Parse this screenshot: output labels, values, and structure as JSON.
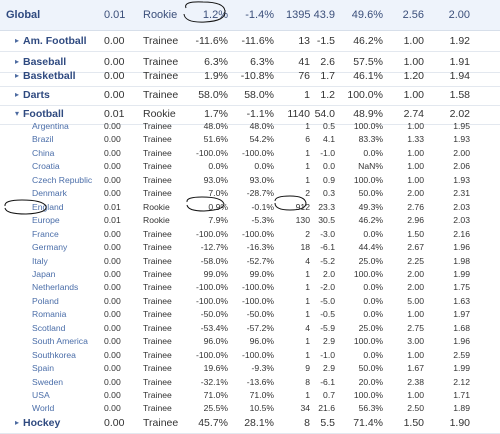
{
  "global": {
    "name": "Global",
    "values": [
      "0.01",
      "Rookie",
      "1.2%",
      "-1.4%",
      "1395",
      "43.9",
      "49.6%",
      "2.56",
      "2.00"
    ]
  },
  "sports_before": [
    {
      "name": "Am. Football",
      "toggle": "▸",
      "values": [
        "0.00",
        "Trainee",
        "-11.6%",
        "-11.6%",
        "13",
        "-1.5",
        "46.2%",
        "1.00",
        "1.92"
      ]
    },
    {
      "name": "Baseball",
      "toggle": "▸",
      "values": [
        "0.00",
        "Trainee",
        "6.3%",
        "6.3%",
        "41",
        "2.6",
        "57.5%",
        "1.00",
        "1.91"
      ]
    },
    {
      "name": "Basketball",
      "toggle": "▸",
      "values": [
        "0.00",
        "Trainee",
        "1.9%",
        "-10.8%",
        "76",
        "1.7",
        "46.1%",
        "1.20",
        "1.94"
      ]
    },
    {
      "name": "Darts",
      "toggle": "▸",
      "values": [
        "0.00",
        "Trainee",
        "58.0%",
        "58.0%",
        "1",
        "1.2",
        "100.0%",
        "1.00",
        "1.58"
      ]
    }
  ],
  "football": {
    "name": "Football",
    "toggle": "▾",
    "values": [
      "0.01",
      "Rookie",
      "1.7%",
      "-1.1%",
      "1140",
      "54.0",
      "48.9%",
      "2.74",
      "2.02"
    ],
    "countries": [
      {
        "name": "Argentina",
        "values": [
          "0.00",
          "Trainee",
          "48.0%",
          "48.0%",
          "1",
          "0.5",
          "100.0%",
          "1.00",
          "1.95"
        ]
      },
      {
        "name": "Brazil",
        "values": [
          "0.00",
          "Trainee",
          "51.6%",
          "54.2%",
          "6",
          "4.1",
          "83.3%",
          "1.33",
          "1.93"
        ]
      },
      {
        "name": "China",
        "values": [
          "0.00",
          "Trainee",
          "-100.0%",
          "-100.0%",
          "1",
          "-1.0",
          "0.0%",
          "1.00",
          "2.00"
        ]
      },
      {
        "name": "Croatia",
        "values": [
          "0.00",
          "Trainee",
          "0.0%",
          "0.0%",
          "1",
          "0.0",
          "NaN%",
          "1.00",
          "2.06"
        ]
      },
      {
        "name": "Czech Republic",
        "values": [
          "0.00",
          "Trainee",
          "93.0%",
          "93.0%",
          "1",
          "0.9",
          "100.0%",
          "1.00",
          "1.93"
        ]
      },
      {
        "name": "Denmark",
        "values": [
          "0.00",
          "Trainee",
          "7.0%",
          "-28.7%",
          "2",
          "0.3",
          "50.0%",
          "2.00",
          "2.31"
        ]
      },
      {
        "name": "England",
        "values": [
          "0.01",
          "Rookie",
          "0.9%",
          "-0.1%",
          "912",
          "23.3",
          "49.3%",
          "2.76",
          "2.03"
        ]
      },
      {
        "name": "Europe",
        "values": [
          "0.01",
          "Rookie",
          "7.9%",
          "-5.3%",
          "130",
          "30.5",
          "46.2%",
          "2.96",
          "2.03"
        ]
      },
      {
        "name": "France",
        "values": [
          "0.00",
          "Trainee",
          "-100.0%",
          "-100.0%",
          "2",
          "-3.0",
          "0.0%",
          "1.50",
          "2.16"
        ]
      },
      {
        "name": "Germany",
        "values": [
          "0.00",
          "Trainee",
          "-12.7%",
          "-16.3%",
          "18",
          "-6.1",
          "44.4%",
          "2.67",
          "1.96"
        ]
      },
      {
        "name": "Italy",
        "values": [
          "0.00",
          "Trainee",
          "-58.0%",
          "-52.7%",
          "4",
          "-5.2",
          "25.0%",
          "2.25",
          "1.98"
        ]
      },
      {
        "name": "Japan",
        "values": [
          "0.00",
          "Trainee",
          "99.0%",
          "99.0%",
          "1",
          "2.0",
          "100.0%",
          "2.00",
          "1.99"
        ]
      },
      {
        "name": "Netherlands",
        "values": [
          "0.00",
          "Trainee",
          "-100.0%",
          "-100.0%",
          "1",
          "-2.0",
          "0.0%",
          "2.00",
          "1.75"
        ]
      },
      {
        "name": "Poland",
        "values": [
          "0.00",
          "Trainee",
          "-100.0%",
          "-100.0%",
          "1",
          "-5.0",
          "0.0%",
          "5.00",
          "1.63"
        ]
      },
      {
        "name": "Romania",
        "values": [
          "0.00",
          "Trainee",
          "-50.0%",
          "-50.0%",
          "1",
          "-0.5",
          "0.0%",
          "1.00",
          "1.97"
        ]
      },
      {
        "name": "Scotland",
        "values": [
          "0.00",
          "Trainee",
          "-53.4%",
          "-57.2%",
          "4",
          "-5.9",
          "25.0%",
          "2.75",
          "1.68"
        ]
      },
      {
        "name": "South America",
        "values": [
          "0.00",
          "Trainee",
          "96.0%",
          "96.0%",
          "1",
          "2.9",
          "100.0%",
          "3.00",
          "1.96"
        ]
      },
      {
        "name": "Southkorea",
        "values": [
          "0.00",
          "Trainee",
          "-100.0%",
          "-100.0%",
          "1",
          "-1.0",
          "0.0%",
          "1.00",
          "2.59"
        ]
      },
      {
        "name": "Spain",
        "values": [
          "0.00",
          "Trainee",
          "19.6%",
          "-9.3%",
          "9",
          "2.9",
          "50.0%",
          "1.67",
          "1.99"
        ]
      },
      {
        "name": "Sweden",
        "values": [
          "0.00",
          "Trainee",
          "-32.1%",
          "-13.6%",
          "8",
          "-6.1",
          "20.0%",
          "2.38",
          "2.12"
        ]
      },
      {
        "name": "USA",
        "values": [
          "0.00",
          "Trainee",
          "71.0%",
          "71.0%",
          "1",
          "0.7",
          "100.0%",
          "1.00",
          "1.71"
        ]
      },
      {
        "name": "World",
        "values": [
          "0.00",
          "Trainee",
          "25.5%",
          "10.5%",
          "34",
          "21.6",
          "56.3%",
          "2.50",
          "1.89"
        ]
      }
    ]
  },
  "hockey": {
    "name": "Hockey",
    "toggle": "▸",
    "values": [
      "0.00",
      "Trainee",
      "45.7%",
      "28.1%",
      "8",
      "5.5",
      "71.4%",
      "1.50",
      "1.90"
    ]
  }
}
